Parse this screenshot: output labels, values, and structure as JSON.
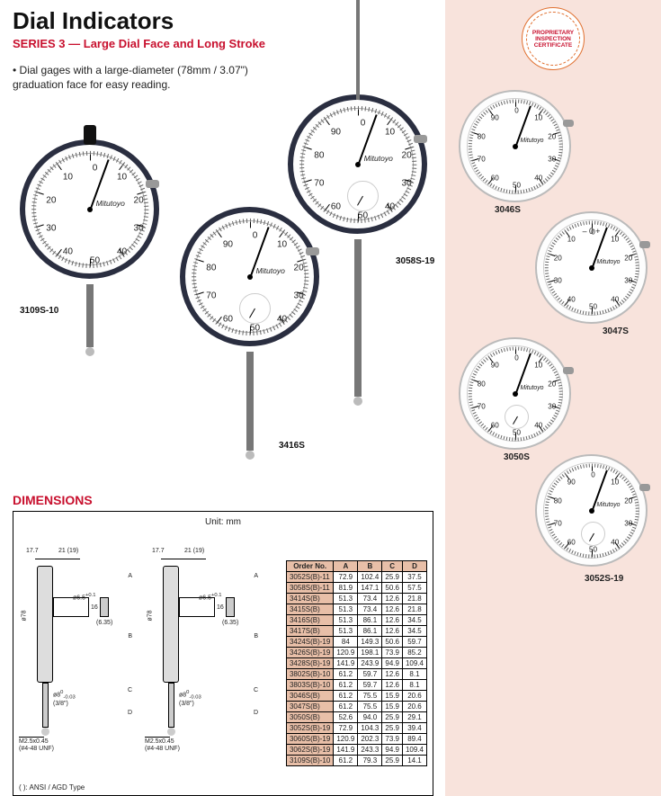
{
  "header": {
    "title": "Dial Indicators",
    "subtitle": "SERIES 3 — Large Dial Face and Long Stroke",
    "bullet": "Dial gages with a large-diameter (78mm / 3.07\") graduation face for easy reading."
  },
  "seal": {
    "line1": "PROPRIETARY",
    "line2": "INSPECTION",
    "line3": "CERTIFICATE"
  },
  "gauges_main": [
    {
      "id": "3109S-10",
      "face_numbers": [
        "0",
        "10",
        "20",
        "30",
        "40",
        "50",
        "40",
        "30",
        "20",
        "10"
      ],
      "inner": false,
      "stem_len": 70,
      "top_stub": true
    },
    {
      "id": "3416S",
      "face_numbers": [
        "0",
        "10",
        "20",
        "30",
        "40",
        "50",
        "60",
        "70",
        "80",
        "90"
      ],
      "inner": true,
      "stem_len": 110,
      "top_stub": false
    },
    {
      "id": "3058S-19",
      "face_numbers": [
        "0",
        "10",
        "20",
        "30",
        "40",
        "50",
        "60",
        "70",
        "80",
        "90"
      ],
      "inner": true,
      "stem_len": 175,
      "top_stub": false,
      "long_top": true
    }
  ],
  "gauges_side": [
    {
      "id": "3046S",
      "face_numbers": [
        "0",
        "10",
        "20",
        "30",
        "40",
        "50",
        "60",
        "70",
        "80",
        "90"
      ],
      "inner": false
    },
    {
      "id": "3047S",
      "face_numbers": [
        "0",
        "10",
        "20",
        "30",
        "40",
        "50",
        "40",
        "30",
        "20",
        "10"
      ],
      "inner": false,
      "plus_minus": true
    },
    {
      "id": "3050S",
      "face_numbers": [
        "0",
        "10",
        "20",
        "30",
        "40",
        "50",
        "60",
        "70",
        "80",
        "90"
      ],
      "inner": true
    },
    {
      "id": "3052S-19",
      "face_numbers": [
        "0",
        "10",
        "20",
        "30",
        "40",
        "50",
        "60",
        "70",
        "80",
        "90"
      ],
      "inner": true
    }
  ],
  "dimensions": {
    "label": "DIMENSIONS",
    "unit": "Unit: mm",
    "note": "( ): ANSI / AGD Type",
    "diag_labels": {
      "top_left": "17.7",
      "top_right": "21 (19)",
      "dia": "ø78",
      "hole": "ø6.5",
      "hole_depth": "(6.35)",
      "stem": "ø8",
      "stem_note": "(3/8\")",
      "thread": "M2.5x0.45",
      "thread_note": "(#4-48 UNF)",
      "lug": "16"
    },
    "table": {
      "columns": [
        "Order No.",
        "A",
        "B",
        "C",
        "D"
      ],
      "rows": [
        [
          "3052S(B)-11",
          "72.9",
          "102.4",
          "25.9",
          "37.5"
        ],
        [
          "3058S(B)-11",
          "81.9",
          "147.1",
          "50.6",
          "57.5"
        ],
        [
          "3414S(B)",
          "51.3",
          "73.4",
          "12.6",
          "21.8"
        ],
        [
          "3415S(B)",
          "51.3",
          "73.4",
          "12.6",
          "21.8"
        ],
        [
          "3416S(B)",
          "51.3",
          "86.1",
          "12.6",
          "34.5"
        ],
        [
          "3417S(B)",
          "51.3",
          "86.1",
          "12.6",
          "34.5"
        ],
        [
          "3424S(B)-19",
          "84",
          "149.3",
          "50.6",
          "59.7"
        ],
        [
          "3426S(B)-19",
          "120.9",
          "198.1",
          "73.9",
          "85.2"
        ],
        [
          "3428S(B)-19",
          "141.9",
          "243.9",
          "94.9",
          "109.4"
        ],
        [
          "3802S(B)-10",
          "61.2",
          "59.7",
          "12.6",
          "8.1"
        ],
        [
          "3803S(B)-10",
          "61.2",
          "59.7",
          "12.6",
          "8.1"
        ],
        [
          "3046S(B)",
          "61.2",
          "75.5",
          "15.9",
          "20.6"
        ],
        [
          "3047S(B)",
          "61.2",
          "75.5",
          "15.9",
          "20.6"
        ],
        [
          "3050S(B)",
          "52.6",
          "94.0",
          "25.9",
          "29.1"
        ],
        [
          "3052S(B)-19",
          "72.9",
          "104.3",
          "25.9",
          "39.4"
        ],
        [
          "3060S(B)-19",
          "120.9",
          "202.3",
          "73.9",
          "89.4"
        ],
        [
          "3062S(B)-19",
          "141.9",
          "243.3",
          "94.9",
          "109.4"
        ],
        [
          "3109S(B)-10",
          "61.2",
          "79.3",
          "25.9",
          "14.1"
        ]
      ]
    }
  },
  "style": {
    "bezel_color": "#2a2e40",
    "face_color": "#ffffff",
    "accent_red": "#c8102e",
    "table_header_bg": "#e8bfa8",
    "side_bg": "#f8e3dc"
  }
}
